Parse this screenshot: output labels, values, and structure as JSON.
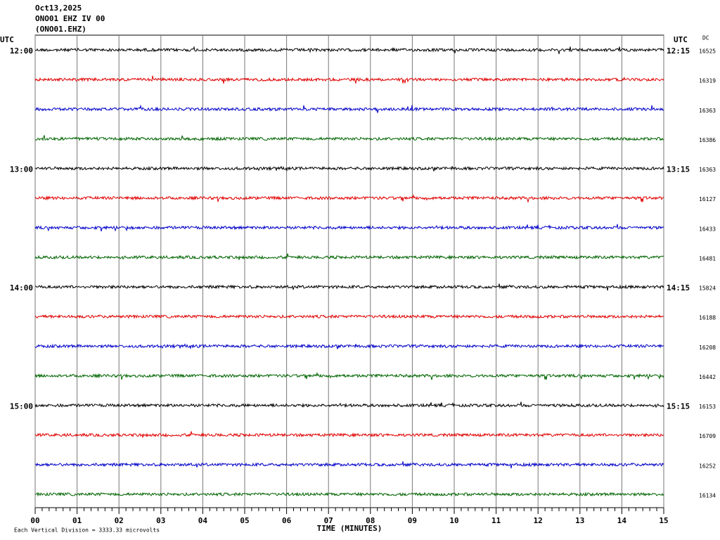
{
  "header": {
    "date": "Oct13,2025",
    "station": "ONO01 EHZ IV 00",
    "channel": "(ONO01.EHZ)"
  },
  "left_axis": {
    "unit": "UTC"
  },
  "right_axis": {
    "unit": "UTC",
    "dc_label": "DC"
  },
  "rows": [
    {
      "left": "12:00",
      "right": "12:15",
      "dc": 16525,
      "color": "#000000"
    },
    {
      "dc": 16319,
      "color": "#e00000"
    },
    {
      "dc": 16363,
      "color": "#0000c8"
    },
    {
      "dc": 16386,
      "color": "#006400"
    },
    {
      "left": "13:00",
      "right": "13:15",
      "dc": 16363,
      "color": "#000000"
    },
    {
      "dc": 16127,
      "color": "#e00000"
    },
    {
      "dc": 16433,
      "color": "#0000c8"
    },
    {
      "dc": 16481,
      "color": "#006400"
    },
    {
      "left": "14:00",
      "right": "14:15",
      "dc": 15824,
      "color": "#000000"
    },
    {
      "dc": 16188,
      "color": "#e00000"
    },
    {
      "dc": 16208,
      "color": "#0000c8"
    },
    {
      "dc": 16442,
      "color": "#006400"
    },
    {
      "left": "15:00",
      "right": "15:15",
      "dc": 16153,
      "color": "#000000"
    },
    {
      "dc": 16709,
      "color": "#e00000"
    },
    {
      "dc": 16252,
      "color": "#0000c8"
    },
    {
      "dc": 16134,
      "color": "#006400"
    }
  ],
  "x_axis": {
    "label": "TIME (MINUTES)",
    "ticks": [
      "00",
      "01",
      "02",
      "03",
      "04",
      "05",
      "06",
      "07",
      "08",
      "09",
      "10",
      "11",
      "12",
      "13",
      "14",
      "15"
    ]
  },
  "footer": "Each Vertical Division = 3333.33 microvolts"
}
